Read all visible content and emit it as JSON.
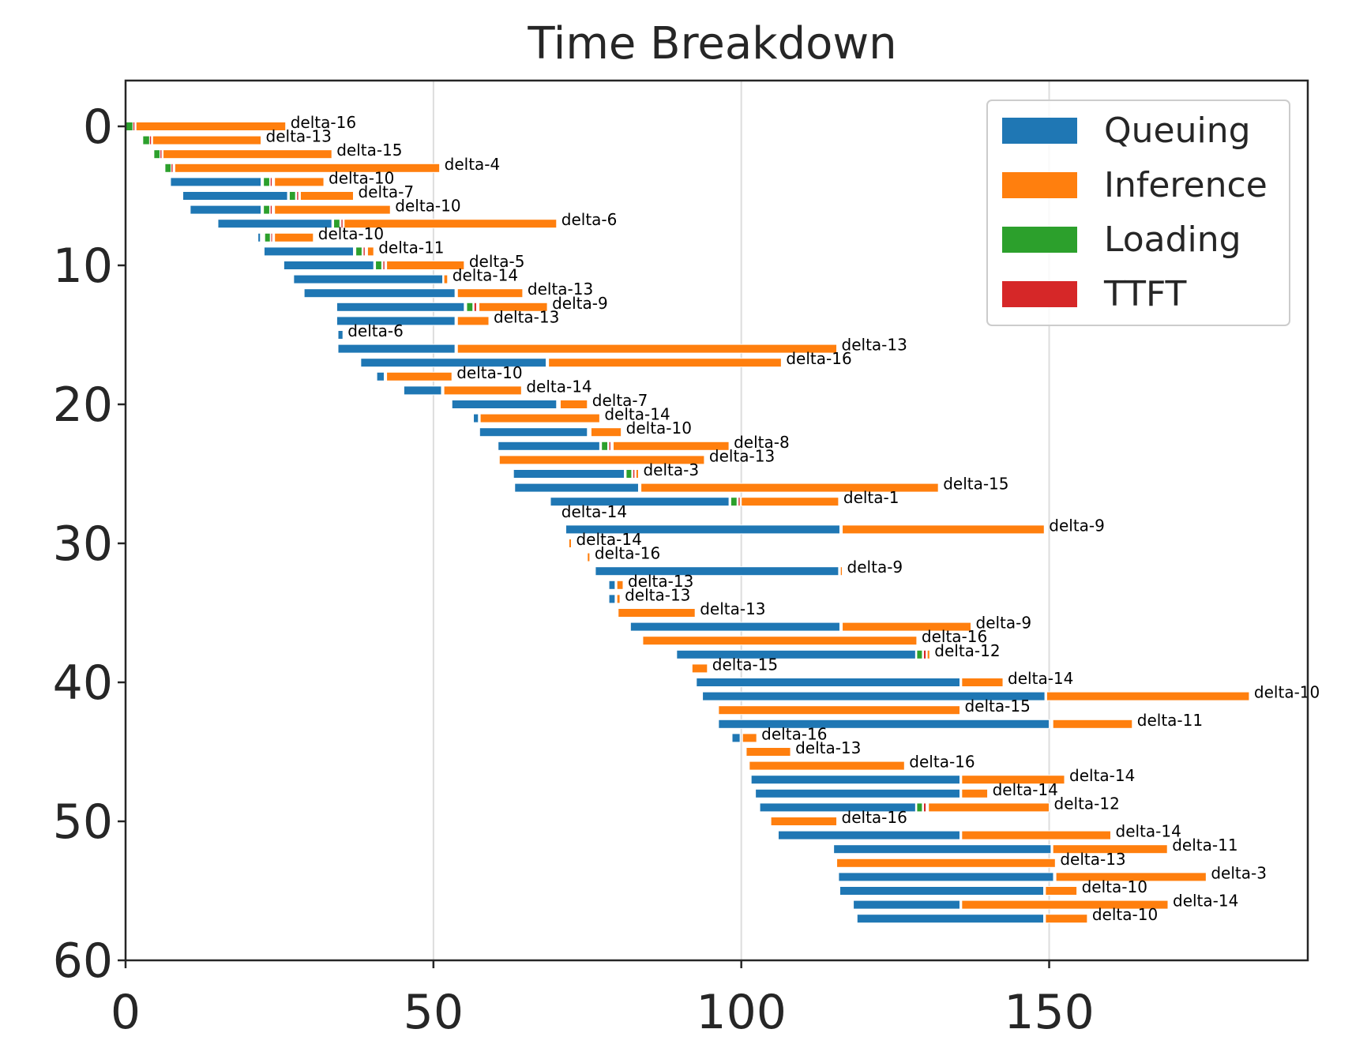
{
  "chart_data": {
    "type": "gantt-bar",
    "title": "Time Breakdown",
    "xlabel": "",
    "ylabel": "",
    "xlim": [
      0,
      192
    ],
    "ylim": [
      60,
      -3
    ],
    "xticks": [
      0,
      50,
      100,
      150
    ],
    "yticks": [
      0,
      10,
      20,
      30,
      40,
      50,
      60
    ],
    "grid": "x",
    "y_inverted": true,
    "legend": {
      "placement": "top-right",
      "entries": [
        {
          "name": "Queuing",
          "color": "#1f77b4"
        },
        {
          "name": "Inference",
          "color": "#ff7f0e"
        },
        {
          "name": "Loading",
          "color": "#2ca02c"
        },
        {
          "name": "TTFT",
          "color": "#d62728"
        }
      ]
    },
    "series_colors": {
      "queue": "#1f77b4",
      "inference": "#ff7f0e",
      "loading": "#2ca02c",
      "ttft": "#d62728"
    },
    "rows": [
      {
        "y": 0,
        "queue": [
          0,
          0
        ],
        "loading": [
          0,
          1.2
        ],
        "ttft": [
          1.2,
          1.5
        ],
        "inference": [
          1.7,
          26
        ],
        "label": "delta-16"
      },
      {
        "y": 1,
        "queue": [
          0,
          0
        ],
        "loading": [
          2.8,
          3.9
        ],
        "ttft": [
          3.9,
          4.2
        ],
        "inference": [
          4.4,
          22
        ],
        "label": "delta-13"
      },
      {
        "y": 2,
        "queue": [
          0,
          0
        ],
        "loading": [
          4.6,
          5.6
        ],
        "ttft": [
          5.6,
          5.9
        ],
        "inference": [
          6.1,
          33.5
        ],
        "label": "delta-15"
      },
      {
        "y": 3,
        "queue": [
          0,
          0
        ],
        "loading": [
          6.4,
          7.4
        ],
        "ttft": [
          7.4,
          7.7
        ],
        "inference": [
          8.0,
          51
        ],
        "label": "delta-4"
      },
      {
        "y": 4,
        "queue": [
          7.3,
          22
        ],
        "loading": [
          22.4,
          23.4
        ],
        "ttft": [
          23.5,
          23.8
        ],
        "inference": [
          24.2,
          32.2
        ],
        "label": "delta-10"
      },
      {
        "y": 5,
        "queue": [
          9.3,
          26.3
        ],
        "loading": [
          26.6,
          27.6
        ],
        "ttft": [
          27.8,
          28.1
        ],
        "inference": [
          28.4,
          37
        ],
        "label": "delta-7"
      },
      {
        "y": 6,
        "queue": [
          10.5,
          22
        ],
        "loading": [
          22.4,
          23.4
        ],
        "ttft": [
          23.5,
          23.8
        ],
        "inference": [
          24.2,
          43
        ],
        "label": "delta-10"
      },
      {
        "y": 7,
        "queue": [
          15,
          33.5
        ],
        "loading": [
          33.8,
          34.8
        ],
        "ttft": [
          35,
          35.3
        ],
        "inference": [
          35.5,
          70
        ],
        "label": "delta-6"
      },
      {
        "y": 8,
        "queue": [
          21.5,
          21.9
        ],
        "loading": [
          22.6,
          23.5
        ],
        "ttft": [
          23.6,
          23.8
        ],
        "inference": [
          24.2,
          30.5
        ],
        "label": "delta-10"
      },
      {
        "y": 9,
        "queue": [
          22.5,
          37
        ],
        "loading": [
          37.4,
          38.4
        ],
        "ttft": [
          38.6,
          38.9
        ],
        "inference": [
          39.3,
          40.3
        ],
        "label": "delta-11"
      },
      {
        "y": 10,
        "queue": [
          25.7,
          40.3
        ],
        "loading": [
          40.6,
          41.6
        ],
        "ttft": [
          41.8,
          42.1
        ],
        "inference": [
          42.4,
          55
        ],
        "label": "delta-5"
      },
      {
        "y": 11,
        "queue": [
          27.3,
          51.5
        ],
        "loading": [
          0,
          0
        ],
        "ttft": [
          0,
          0
        ],
        "inference": [
          51.7,
          52.3
        ],
        "label": "delta-14"
      },
      {
        "y": 12,
        "queue": [
          29,
          53.5
        ],
        "loading": [
          0,
          0
        ],
        "ttft": [
          0,
          0
        ],
        "inference": [
          53.9,
          64.5
        ],
        "label": "delta-13"
      },
      {
        "y": 13,
        "queue": [
          34.3,
          55
        ],
        "loading": [
          55.4,
          56.4
        ],
        "ttft": [
          56.6,
          57
        ],
        "inference": [
          57.4,
          68.5
        ],
        "label": "delta-9"
      },
      {
        "y": 14,
        "queue": [
          34.3,
          53.5
        ],
        "loading": [
          0,
          0
        ],
        "ttft": [
          0,
          0
        ],
        "inference": [
          53.9,
          59
        ],
        "label": "delta-13"
      },
      {
        "y": 15,
        "queue": [
          34.5,
          35.3
        ],
        "loading": [
          0,
          0
        ],
        "ttft": [
          0,
          0
        ],
        "inference": [
          0,
          0
        ],
        "label": "delta-6"
      },
      {
        "y": 16,
        "queue": [
          34.5,
          53.5
        ],
        "loading": [
          0,
          0
        ],
        "ttft": [
          0,
          0
        ],
        "inference": [
          53.9,
          115.5
        ],
        "label": "delta-13"
      },
      {
        "y": 17,
        "queue": [
          38.2,
          68.3
        ],
        "loading": [
          0,
          0
        ],
        "ttft": [
          0,
          0
        ],
        "inference": [
          68.7,
          106.5
        ],
        "label": "delta-16"
      },
      {
        "y": 18,
        "queue": [
          40.8,
          42
        ],
        "loading": [
          0,
          0
        ],
        "ttft": [
          0,
          0
        ],
        "inference": [
          42.4,
          53
        ],
        "label": "delta-10"
      },
      {
        "y": 19,
        "queue": [
          45.2,
          51.3
        ],
        "loading": [
          0,
          0
        ],
        "ttft": [
          0,
          0
        ],
        "inference": [
          51.7,
          64.3
        ],
        "label": "delta-14"
      },
      {
        "y": 20,
        "queue": [
          53,
          70
        ],
        "loading": [
          0,
          0
        ],
        "ttft": [
          0,
          0
        ],
        "inference": [
          70.6,
          75
        ],
        "label": "delta-7"
      },
      {
        "y": 21,
        "queue": [
          56.5,
          57.3
        ],
        "loading": [
          0,
          0
        ],
        "ttft": [
          0,
          0
        ],
        "inference": [
          57.6,
          77
        ],
        "label": "delta-14"
      },
      {
        "y": 22,
        "queue": [
          57.5,
          75
        ],
        "loading": [
          0,
          0
        ],
        "ttft": [
          0,
          0
        ],
        "inference": [
          75.6,
          80.5
        ],
        "label": "delta-10"
      },
      {
        "y": 23,
        "queue": [
          60.5,
          77
        ],
        "loading": [
          77.3,
          78.3
        ],
        "ttft": [
          78.5,
          78.8
        ],
        "inference": [
          79.2,
          98
        ],
        "label": "delta-8"
      },
      {
        "y": 24,
        "queue": [
          0,
          0
        ],
        "loading": [
          0,
          0
        ],
        "ttft": [
          0,
          0
        ],
        "inference": [
          60.7,
          94
        ],
        "label": "delta-13"
      },
      {
        "y": 25,
        "queue": [
          63,
          81
        ],
        "loading": [
          81.3,
          82.2
        ],
        "ttft": [
          82.4,
          82.7
        ],
        "inference": [
          82.9,
          83.3
        ],
        "label": "delta-3"
      },
      {
        "y": 26,
        "queue": [
          63.2,
          83.3
        ],
        "loading": [
          0,
          0
        ],
        "ttft": [
          0,
          0
        ],
        "inference": [
          83.7,
          132
        ],
        "label": "delta-15"
      },
      {
        "y": 27,
        "queue": [
          69,
          98
        ],
        "loading": [
          98.3,
          99.3
        ],
        "ttft": [
          99.5,
          99.8
        ],
        "inference": [
          100,
          115.8
        ],
        "label": "delta-1"
      },
      {
        "y": 28,
        "queue": [
          0,
          0
        ],
        "loading": [
          0,
          0
        ],
        "ttft": [
          0,
          0
        ],
        "inference": [
          0,
          0
        ],
        "label": "delta-14"
      },
      {
        "y": 29,
        "queue": [
          71.5,
          116
        ],
        "loading": [
          0,
          0
        ],
        "ttft": [
          0,
          0
        ],
        "inference": [
          116.4,
          149.2
        ],
        "label": "delta-9"
      },
      {
        "y": 30,
        "queue": [
          0,
          0
        ],
        "loading": [
          0,
          0
        ],
        "ttft": [
          0,
          0
        ],
        "inference": [
          72,
          72.4
        ],
        "label": "delta-14"
      },
      {
        "y": 31,
        "queue": [
          0,
          0
        ],
        "loading": [
          0,
          0
        ],
        "ttft": [
          0,
          0
        ],
        "inference": [
          75,
          75.4
        ],
        "label": "delta-16"
      },
      {
        "y": 32,
        "queue": [
          76.3,
          115.8
        ],
        "loading": [
          0,
          0
        ],
        "ttft": [
          0,
          0
        ],
        "inference": [
          116.1,
          116.4
        ],
        "label": "delta-9"
      },
      {
        "y": 33,
        "queue": [
          78.5,
          79.5
        ],
        "loading": [
          0,
          0
        ],
        "ttft": [
          0,
          0
        ],
        "inference": [
          79.8,
          80.8
        ],
        "label": "delta-13"
      },
      {
        "y": 34,
        "queue": [
          78.5,
          79.5
        ],
        "loading": [
          0,
          0
        ],
        "ttft": [
          0,
          0
        ],
        "inference": [
          79.8,
          80.3
        ],
        "label": "delta-13"
      },
      {
        "y": 35,
        "queue": [
          0,
          0
        ],
        "loading": [
          0,
          0
        ],
        "ttft": [
          0,
          0
        ],
        "inference": [
          80,
          92.5
        ],
        "label": "delta-13"
      },
      {
        "y": 36,
        "queue": [
          82,
          116
        ],
        "loading": [
          0,
          0
        ],
        "ttft": [
          0,
          0
        ],
        "inference": [
          116.4,
          137.3
        ],
        "label": "delta-9"
      },
      {
        "y": 37,
        "queue": [
          0,
          0
        ],
        "loading": [
          0,
          0
        ],
        "ttft": [
          0,
          0
        ],
        "inference": [
          84,
          128.5
        ],
        "label": "delta-16"
      },
      {
        "y": 38,
        "queue": [
          89.5,
          128.3
        ],
        "loading": [
          128.5,
          129.4
        ],
        "ttft": [
          129.6,
          130
        ],
        "inference": [
          130.2,
          130.6
        ],
        "label": "delta-12"
      },
      {
        "y": 39,
        "queue": [
          0,
          0
        ],
        "loading": [
          0,
          0
        ],
        "ttft": [
          0,
          0
        ],
        "inference": [
          92,
          94.5
        ],
        "label": "delta-15"
      },
      {
        "y": 40,
        "queue": [
          92.7,
          135.5
        ],
        "loading": [
          0,
          0
        ],
        "ttft": [
          0,
          0
        ],
        "inference": [
          135.8,
          142.5
        ],
        "label": "delta-14"
      },
      {
        "y": 41,
        "queue": [
          93.7,
          149.3
        ],
        "loading": [
          0,
          0
        ],
        "ttft": [
          0,
          0
        ],
        "inference": [
          149.6,
          182.5
        ],
        "label": "delta-10"
      },
      {
        "y": 42,
        "queue": [
          0,
          0
        ],
        "loading": [
          0,
          0
        ],
        "ttft": [
          0,
          0
        ],
        "inference": [
          96.3,
          135.5
        ],
        "label": "delta-15"
      },
      {
        "y": 43,
        "queue": [
          96.3,
          150
        ],
        "loading": [
          0,
          0
        ],
        "ttft": [
          0,
          0
        ],
        "inference": [
          150.6,
          163.5
        ],
        "label": "delta-11"
      },
      {
        "y": 44,
        "queue": [
          98.5,
          99.8
        ],
        "loading": [
          0,
          0
        ],
        "ttft": [
          0,
          0
        ],
        "inference": [
          100.2,
          102.5
        ],
        "label": "delta-16"
      },
      {
        "y": 45,
        "queue": [
          0,
          0
        ],
        "loading": [
          0,
          0
        ],
        "ttft": [
          0,
          0
        ],
        "inference": [
          100.8,
          108
        ],
        "label": "delta-13"
      },
      {
        "y": 46,
        "queue": [
          0,
          0
        ],
        "loading": [
          0,
          0
        ],
        "ttft": [
          0,
          0
        ],
        "inference": [
          101.3,
          126.5
        ],
        "label": "delta-16"
      },
      {
        "y": 47,
        "queue": [
          101.6,
          135.5
        ],
        "loading": [
          0,
          0
        ],
        "ttft": [
          0,
          0
        ],
        "inference": [
          135.8,
          152.5
        ],
        "label": "delta-14"
      },
      {
        "y": 48,
        "queue": [
          102.3,
          135.5
        ],
        "loading": [
          0,
          0
        ],
        "ttft": [
          0,
          0
        ],
        "inference": [
          135.8,
          140
        ],
        "label": "delta-14"
      },
      {
        "y": 49,
        "queue": [
          103,
          128.3
        ],
        "loading": [
          128.5,
          129.4
        ],
        "ttft": [
          129.6,
          130
        ],
        "inference": [
          130.4,
          150
        ],
        "label": "delta-12"
      },
      {
        "y": 50,
        "queue": [
          0,
          0
        ],
        "loading": [
          0,
          0
        ],
        "ttft": [
          0,
          0
        ],
        "inference": [
          104.8,
          115.5
        ],
        "label": "delta-16"
      },
      {
        "y": 51,
        "queue": [
          106,
          135.5
        ],
        "loading": [
          0,
          0
        ],
        "ttft": [
          0,
          0
        ],
        "inference": [
          135.8,
          160
        ],
        "label": "delta-14"
      },
      {
        "y": 52,
        "queue": [
          115,
          150.3
        ],
        "loading": [
          0,
          0
        ],
        "ttft": [
          0,
          0
        ],
        "inference": [
          150.6,
          169.2
        ],
        "label": "delta-11"
      },
      {
        "y": 53,
        "queue": [
          0,
          0
        ],
        "loading": [
          0,
          0
        ],
        "ttft": [
          0,
          0
        ],
        "inference": [
          115.5,
          151
        ],
        "label": "delta-13"
      },
      {
        "y": 54,
        "queue": [
          115.8,
          150.7
        ],
        "loading": [
          0,
          0
        ],
        "ttft": [
          0,
          0
        ],
        "inference": [
          151.1,
          175.5
        ],
        "label": "delta-3"
      },
      {
        "y": 55,
        "queue": [
          116,
          149.1
        ],
        "loading": [
          0,
          0
        ],
        "ttft": [
          0,
          0
        ],
        "inference": [
          149.4,
          154.5
        ],
        "label": "delta-10"
      },
      {
        "y": 56,
        "queue": [
          118.2,
          135.5
        ],
        "loading": [
          0,
          0
        ],
        "ttft": [
          0,
          0
        ],
        "inference": [
          135.8,
          169.3
        ],
        "label": "delta-14"
      },
      {
        "y": 57,
        "queue": [
          118.8,
          149.1
        ],
        "loading": [
          0,
          0
        ],
        "ttft": [
          0,
          0
        ],
        "inference": [
          149.4,
          156.2
        ],
        "label": "delta-10"
      }
    ]
  }
}
